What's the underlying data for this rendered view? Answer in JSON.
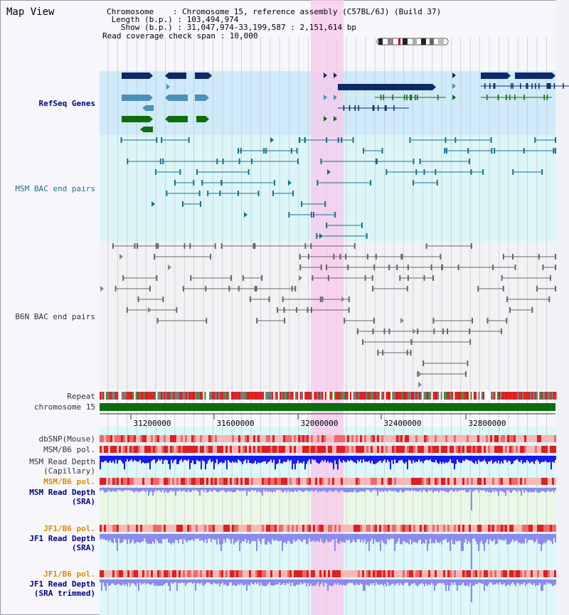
{
  "view": {
    "title": "Map View",
    "chromosome_line": "Chromosome    : Chromosome 15, reference assembly (C57BL/6J) (Build 37)",
    "length_line": " Length (b.p.) : 103,494,974",
    "show_line": "   Show (b.p.) : 31,047,974-33,199,587 : 2,151,614 bp",
    "coverage_line": "Read coverage check span : 10,000"
  },
  "tracks": {
    "refseq_genes": "RefSeq Genes",
    "msm_bac": "MSM BAC end pairs",
    "b6n_bac": "B6N BAC end pairs",
    "repeat": "Repeat",
    "chromosome": "chromosome 15",
    "dbsnp": "dbSNP(Mouse)",
    "msm_b6_pol": "MSM/B6 pol.",
    "msm_depth_cap_1": "MSM Read Depth",
    "msm_depth_cap_2": "(Capillary)",
    "msm_b6_pol_2": "MSM/B6 pol.",
    "msm_depth_sra_1": "MSM Read Depth",
    "msm_depth_sra_2": "(SRA)",
    "jf1_b6_pol": "JF1/B6 pol.",
    "jf1_depth_sra_1": "JF1 Read Depth",
    "jf1_depth_sra_2": "(SRA)",
    "jf1_b6_pol_2": "JF1/B6 pol.",
    "jf1_depth_trim_1": "JF1 Read Depth",
    "jf1_depth_trim_2": "(SRA trimmed)"
  },
  "axis": {
    "ticks": [
      "31200000",
      "31600000",
      "32000000",
      "32400000",
      "32800000"
    ]
  },
  "colors": {
    "refseq_bg": "#cfeaf8",
    "bac_bg": "#dcf6f8",
    "highlight": "#f8c8ec",
    "gene_navy": "#0d2a66",
    "gene_teal": "#4a90b8",
    "gene_green": "#0a6e0a",
    "chrom_green": "#0b6e0b",
    "depth_blue": "#1a1aee",
    "depth_light": "#8b8bee"
  }
}
